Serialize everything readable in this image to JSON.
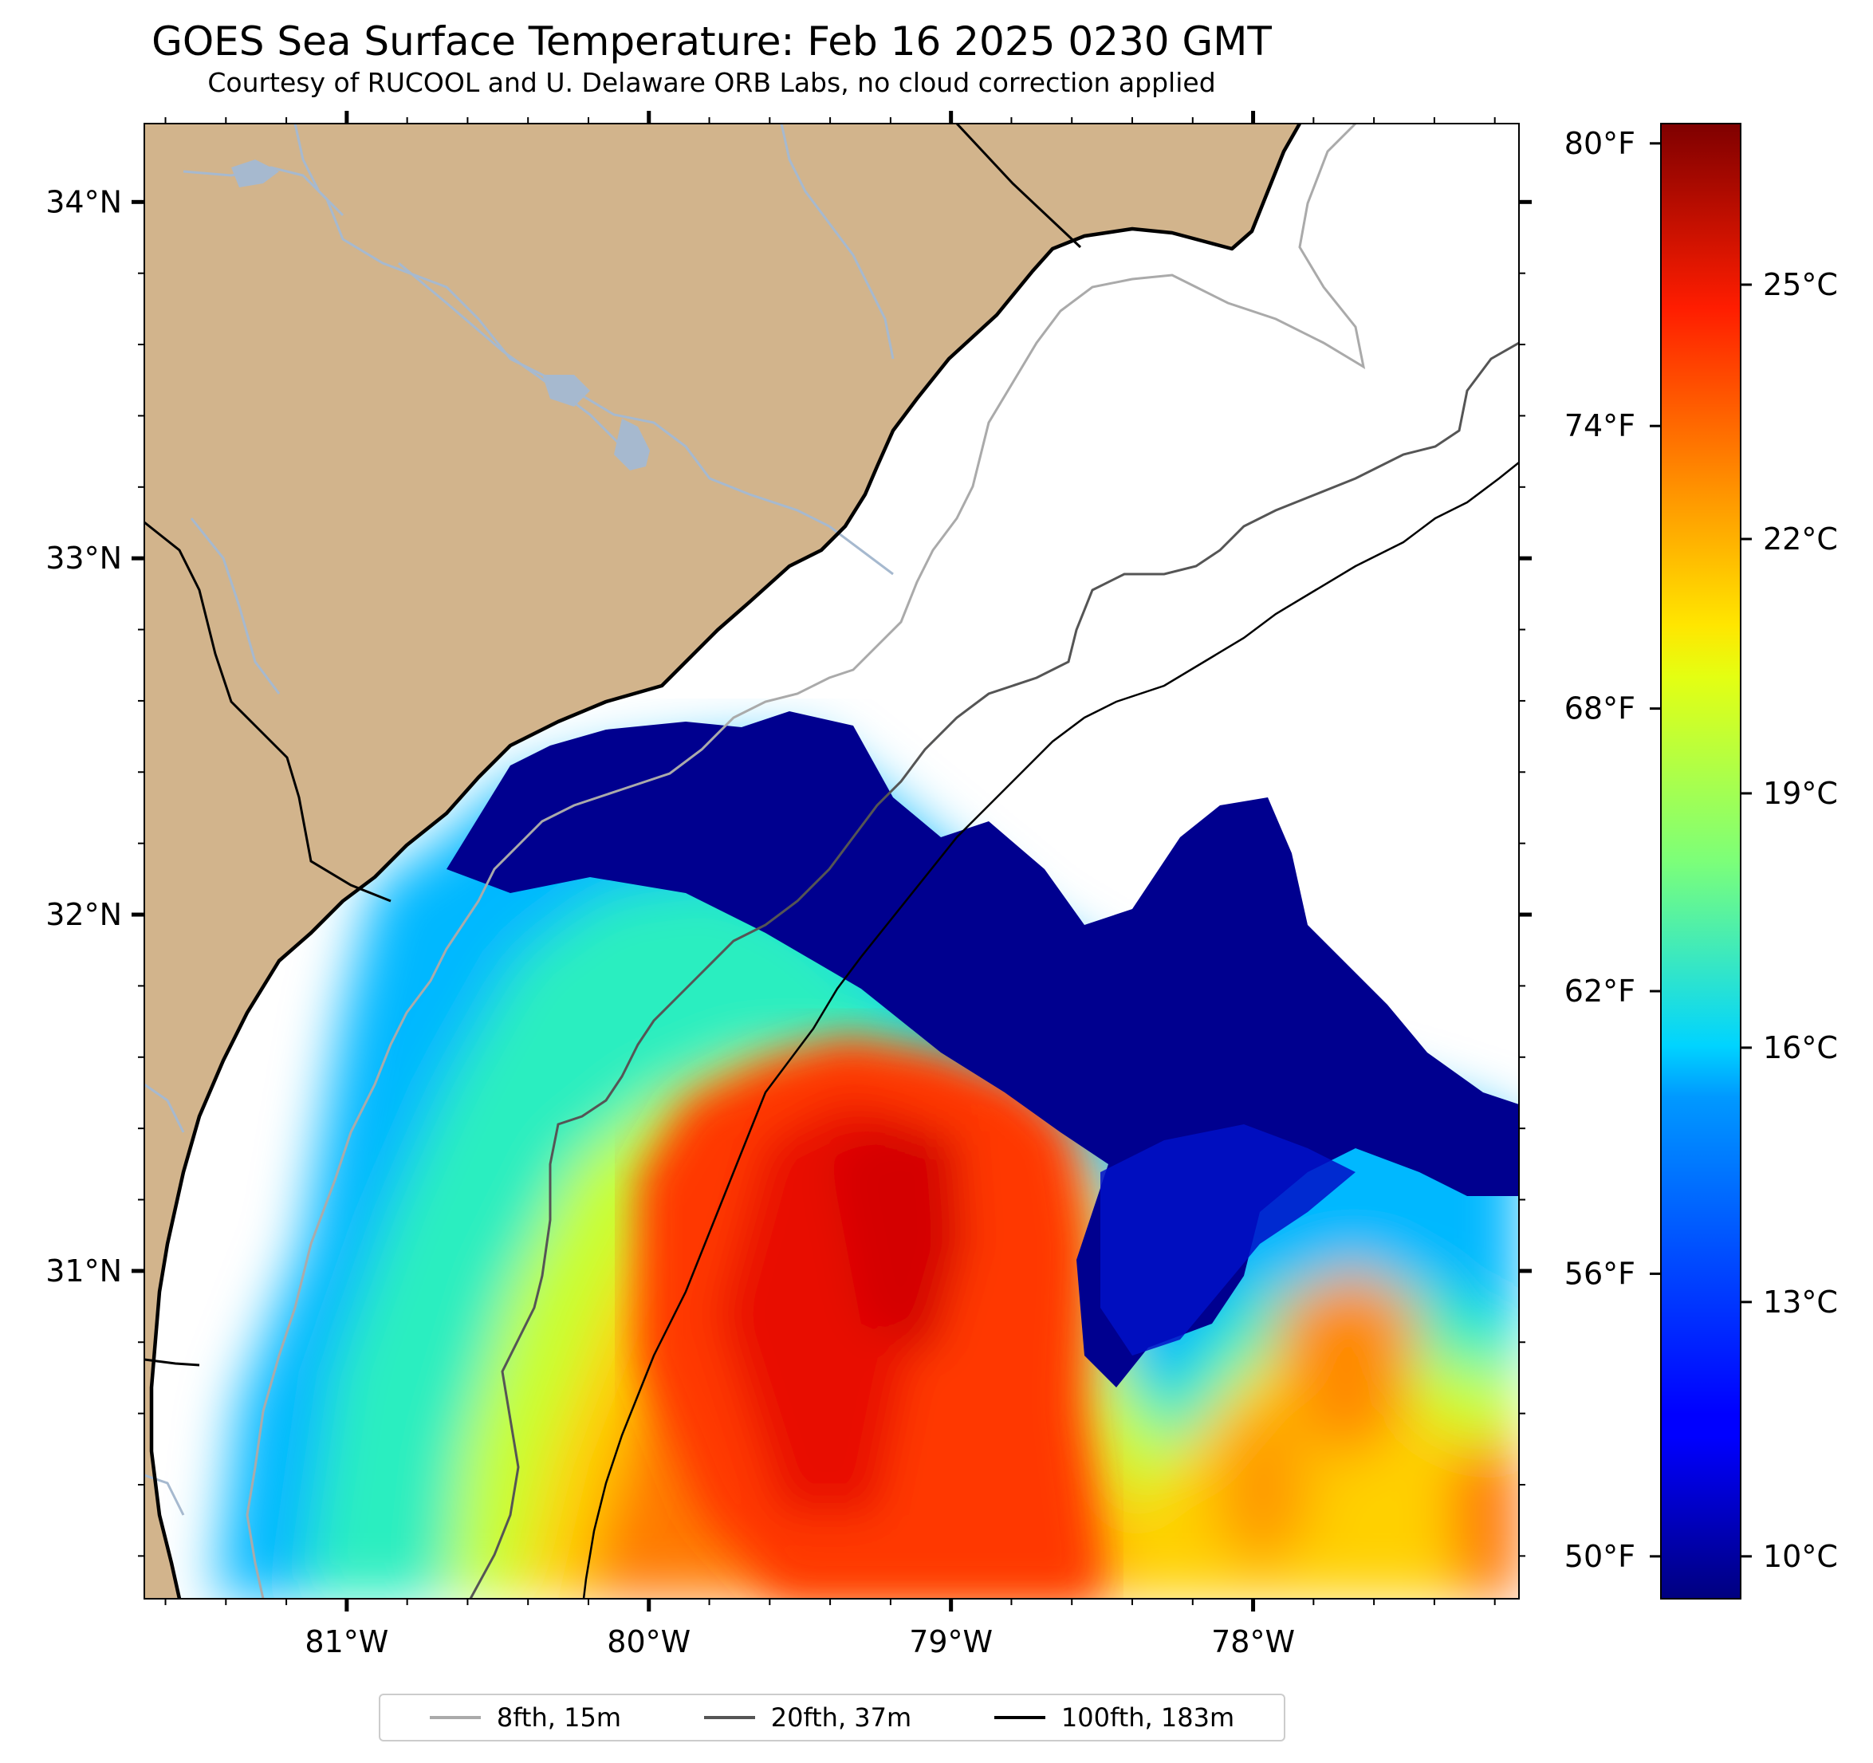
{
  "title": "GOES Sea Surface Temperature: Feb 16 2025 0230 GMT",
  "subtitle": "Courtesy of RUCOOL and U. Delaware ORB Labs, no cloud correction applied",
  "map": {
    "extent": {
      "lon_min": -81.67,
      "lon_max": -77.12,
      "lat_min": 30.08,
      "lat_max": 34.22
    },
    "land_color": "#d2b48c",
    "cloud_color": "#ffffff",
    "lon_ticks": [
      {
        "value": -81,
        "label": "81°W"
      },
      {
        "value": -80,
        "label": "80°W"
      },
      {
        "value": -79,
        "label": "79°W"
      },
      {
        "value": -78,
        "label": "78°W"
      }
    ],
    "lat_ticks": [
      {
        "value": 34,
        "label": "34°N"
      },
      {
        "value": 33,
        "label": "33°N"
      },
      {
        "value": 32,
        "label": "32°N"
      },
      {
        "value": 31,
        "label": "31°N"
      }
    ],
    "features": [
      "land",
      "coastline",
      "rivers",
      "state-borders",
      "bathymetry-contours",
      "sst-field"
    ]
  },
  "colorbar": {
    "colormap": "jet",
    "range_c": [
      9.5,
      26.9
    ],
    "celsius_ticks": [
      {
        "value": 25,
        "label": "25°C"
      },
      {
        "value": 22,
        "label": "22°C"
      },
      {
        "value": 19,
        "label": "19°C"
      },
      {
        "value": 16,
        "label": "16°C"
      },
      {
        "value": 13,
        "label": "13°C"
      },
      {
        "value": 10,
        "label": "10°C"
      }
    ],
    "fahrenheit_ticks": [
      {
        "value": 80,
        "label": "80°F"
      },
      {
        "value": 74,
        "label": "74°F"
      },
      {
        "value": 68,
        "label": "68°F"
      },
      {
        "value": 62,
        "label": "62°F"
      },
      {
        "value": 56,
        "label": "56°F"
      },
      {
        "value": 50,
        "label": "50°F"
      }
    ]
  },
  "legend": {
    "placement": "bottom-center",
    "items": [
      {
        "label": "8fth, 15m",
        "color": "#aaaaaa"
      },
      {
        "label": "20fth, 37m",
        "color": "#555555"
      },
      {
        "label": "100fth, 183m",
        "color": "#000000"
      }
    ]
  }
}
